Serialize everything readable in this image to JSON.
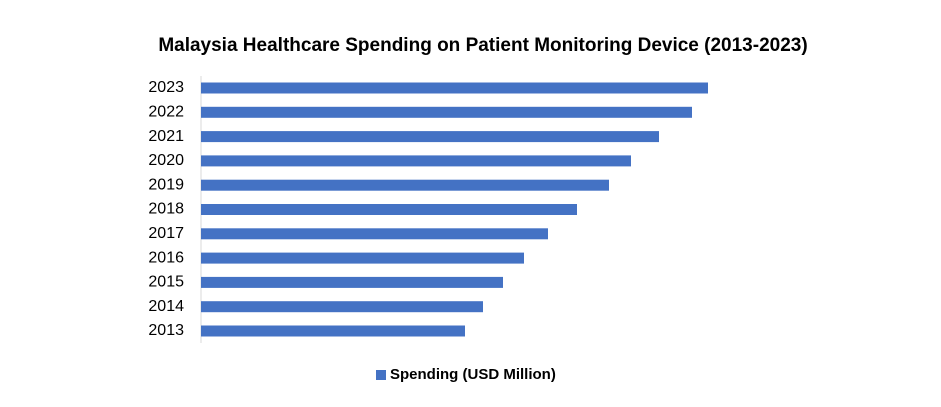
{
  "chart_data": {
    "type": "bar",
    "orientation": "horizontal",
    "title": "Malaysia Healthcare Spending on Patient Monitoring Device (2013-2023)",
    "categories": [
      "2013",
      "2014",
      "2015",
      "2016",
      "2017",
      "2018",
      "2019",
      "2020",
      "2021",
      "2022",
      "2023"
    ],
    "series": [
      {
        "name": "Spending (USD Million)",
        "color": "#4472c4",
        "values": [
          52.8,
          56.4,
          60.4,
          64.6,
          69.4,
          75.2,
          81.6,
          86.0,
          91.6,
          98.2,
          101.4
        ]
      }
    ],
    "xlim": [
      0,
      140
    ],
    "legend": "bottom"
  }
}
